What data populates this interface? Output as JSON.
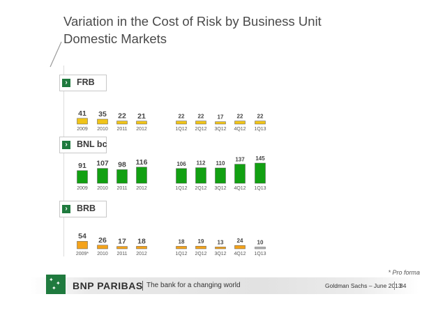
{
  "title_line1": "Variation in the Cost of Risk by Business Unit",
  "title_line2": "Domestic Markets",
  "footnote": "* Pro forma",
  "footer": {
    "brand": "BNP PARIBAS",
    "tagline": "The bank for a changing world",
    "event": "Goldman Sachs – June 2013",
    "page": "34"
  },
  "chart_data": [
    {
      "type": "bar",
      "title": "FRB",
      "unit": "bp",
      "categories": [
        "2009",
        "2010",
        "2011",
        "2012",
        "1Q12",
        "2Q12",
        "3Q12",
        "4Q12",
        "1Q13"
      ],
      "values": [
        41,
        35,
        22,
        21,
        22,
        22,
        17,
        22,
        22
      ],
      "color": "#f0c419"
    },
    {
      "type": "bar",
      "title": "BNL bc",
      "unit": "bp",
      "categories": [
        "2009",
        "2010",
        "2011",
        "2012",
        "1Q12",
        "2Q12",
        "3Q12",
        "4Q12",
        "1Q13"
      ],
      "values": [
        91,
        107,
        98,
        116,
        106,
        112,
        110,
        137,
        145
      ],
      "color": "#12a012"
    },
    {
      "type": "bar",
      "title": "BRB",
      "unit": "bp",
      "categories": [
        "2009*",
        "2010",
        "2011",
        "2012",
        "1Q12",
        "2Q12",
        "3Q12",
        "4Q12",
        "1Q13"
      ],
      "values": [
        54,
        26,
        17,
        18,
        18,
        19,
        13,
        24,
        10
      ],
      "color": "#f4a31b",
      "last_color": "#b8b8b8"
    }
  ]
}
